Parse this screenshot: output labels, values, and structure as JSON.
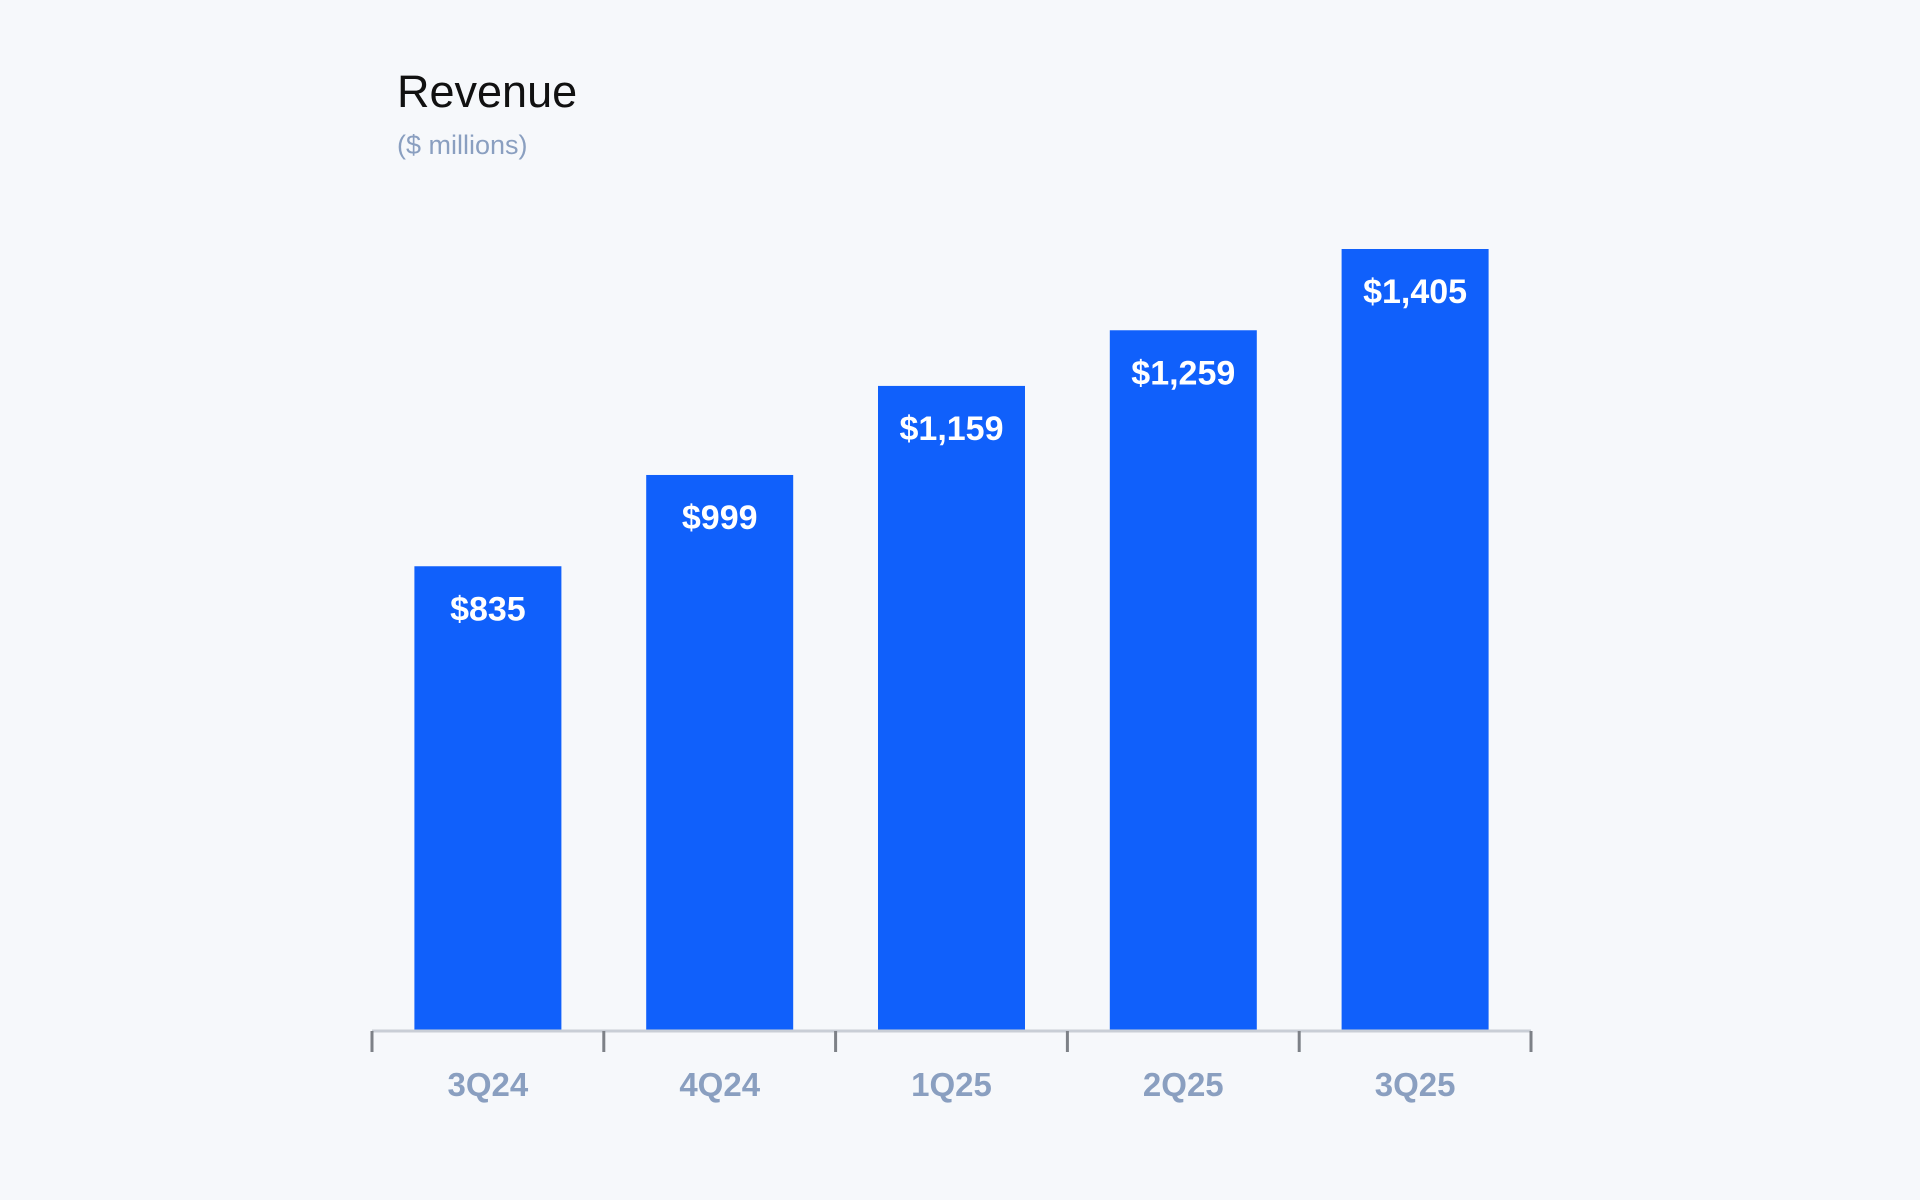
{
  "chart_data": {
    "type": "bar",
    "title": "Revenue",
    "subtitle": "($ millions)",
    "categories": [
      "3Q24",
      "4Q24",
      "1Q25",
      "2Q25",
      "3Q25"
    ],
    "values": [
      835,
      999,
      1159,
      1259,
      1405
    ],
    "data_labels": [
      "$835",
      "$999",
      "$1,159",
      "$1,259",
      "$1,405"
    ],
    "xlabel": "",
    "ylabel": "",
    "ylim": [
      0,
      1405
    ],
    "grid": false,
    "bar_color": "#1060fb",
    "axis_label_color": "#8a9fc0"
  }
}
